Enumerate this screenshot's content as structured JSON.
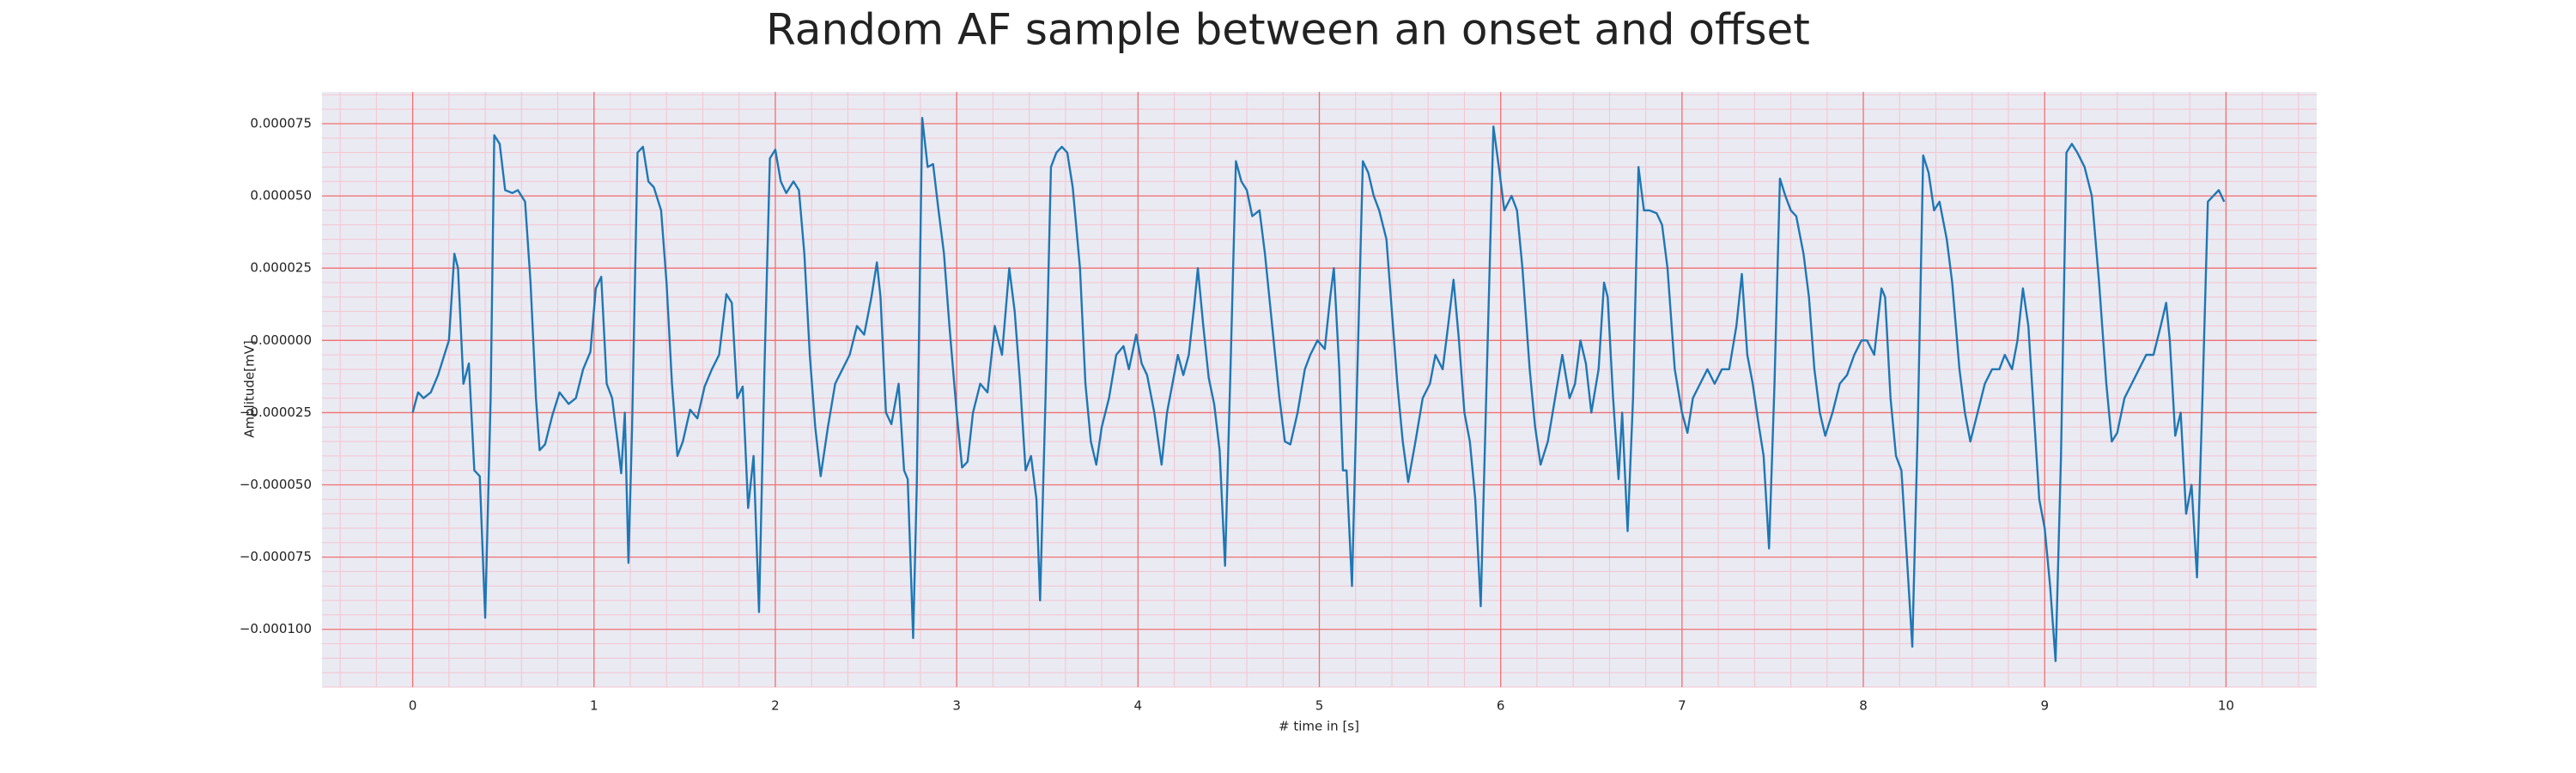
{
  "chart_data": {
    "type": "line",
    "title": "Random AF sample between an onset and offset",
    "xlabel": "# time in [s]",
    "ylabel": "Amplitude[mV]",
    "xlim": [
      -0.5,
      10.5
    ],
    "ylim": [
      -0.00012,
      8.6e-05
    ],
    "xticks": [
      0,
      1,
      2,
      3,
      4,
      5,
      6,
      7,
      8,
      9,
      10
    ],
    "yticks": [
      {
        "value": -0.0001,
        "label": "−0.000100"
      },
      {
        "value": -7.5e-05,
        "label": "−0.000075"
      },
      {
        "value": -5e-05,
        "label": "−0.000050"
      },
      {
        "value": -2.5e-05,
        "label": "−0.000025"
      },
      {
        "value": 0,
        "label": "0.000000"
      },
      {
        "value": 2.5e-05,
        "label": "0.000025"
      },
      {
        "value": 5e-05,
        "label": "0.000050"
      },
      {
        "value": 7.5e-05,
        "label": "0.000075"
      }
    ],
    "grid": true,
    "grid_color": "#f07070",
    "minor_grid": true,
    "minor_divisions": 5,
    "minor_grid_color": "#f4c4d0",
    "background": "#eaeaf2",
    "x": [
      0.0,
      0.03,
      0.06,
      0.1,
      0.14,
      0.18,
      0.2,
      0.23,
      0.25,
      0.28,
      0.31,
      0.34,
      0.37,
      0.4,
      0.43,
      0.45,
      0.48,
      0.51,
      0.55,
      0.58,
      0.62,
      0.65,
      0.68,
      0.7,
      0.73,
      0.77,
      0.81,
      0.86,
      0.9,
      0.94,
      0.98,
      1.01,
      1.04,
      1.07,
      1.1,
      1.13,
      1.15,
      1.17,
      1.19,
      1.21,
      1.24,
      1.27,
      1.3,
      1.33,
      1.37,
      1.4,
      1.43,
      1.46,
      1.49,
      1.53,
      1.57,
      1.61,
      1.65,
      1.69,
      1.73,
      1.76,
      1.79,
      1.82,
      1.85,
      1.88,
      1.91,
      1.94,
      1.97,
      2.0,
      2.03,
      2.06,
      2.1,
      2.13,
      2.16,
      2.19,
      2.22,
      2.25,
      2.29,
      2.33,
      2.37,
      2.41,
      2.45,
      2.49,
      2.53,
      2.56,
      2.58,
      2.61,
      2.64,
      2.68,
      2.71,
      2.73,
      2.76,
      2.78,
      2.81,
      2.84,
      2.87,
      2.9,
      2.93,
      2.96,
      3.0,
      3.03,
      3.06,
      3.09,
      3.13,
      3.17,
      3.21,
      3.25,
      3.29,
      3.32,
      3.35,
      3.38,
      3.41,
      3.44,
      3.46,
      3.49,
      3.52,
      3.55,
      3.58,
      3.61,
      3.64,
      3.68,
      3.71,
      3.74,
      3.77,
      3.8,
      3.84,
      3.88,
      3.92,
      3.95,
      3.99,
      4.02,
      4.05,
      4.09,
      4.13,
      4.16,
      4.19,
      4.22,
      4.25,
      4.28,
      4.31,
      4.33,
      4.36,
      4.39,
      4.42,
      4.45,
      4.48,
      4.51,
      4.54,
      4.57,
      4.6,
      4.63,
      4.67,
      4.7,
      4.74,
      4.78,
      4.81,
      4.84,
      4.88,
      4.92,
      4.95,
      4.99,
      5.03,
      5.06,
      5.08,
      5.11,
      5.13,
      5.15,
      5.18,
      5.21,
      5.24,
      5.27,
      5.3,
      5.33,
      5.37,
      5.4,
      5.43,
      5.46,
      5.49,
      5.53,
      5.57,
      5.61,
      5.64,
      5.68,
      5.71,
      5.74,
      5.77,
      5.8,
      5.83,
      5.86,
      5.89,
      5.92,
      5.96,
      5.99,
      6.02,
      6.06,
      6.09,
      6.12,
      6.16,
      6.19,
      6.22,
      6.26,
      6.3,
      6.34,
      6.38,
      6.41,
      6.44,
      6.47,
      6.5,
      6.54,
      6.57,
      6.59,
      6.62,
      6.65,
      6.67,
      6.7,
      6.73,
      6.76,
      6.79,
      6.82,
      6.86,
      6.89,
      6.92,
      6.96,
      7.0,
      7.03,
      7.06,
      7.1,
      7.14,
      7.18,
      7.22,
      7.26,
      7.3,
      7.33,
      7.36,
      7.39,
      7.42,
      7.45,
      7.48,
      7.51,
      7.54,
      7.57,
      7.6,
      7.63,
      7.67,
      7.7,
      7.73,
      7.76,
      7.79,
      7.83,
      7.87,
      7.91,
      7.95,
      7.99,
      8.02,
      8.06,
      8.1,
      8.12,
      8.15,
      8.18,
      8.21,
      8.24,
      8.27,
      8.3,
      8.33,
      8.36,
      8.39,
      8.42,
      8.46,
      8.49,
      8.53,
      8.56,
      8.59,
      8.63,
      8.67,
      8.71,
      8.75,
      8.78,
      8.82,
      8.85,
      8.88,
      8.91,
      8.94,
      8.97,
      9.0,
      9.03,
      9.06,
      9.09,
      9.12,
      9.15,
      9.18,
      9.22,
      9.26,
      9.3,
      9.34,
      9.37,
      9.4,
      9.44,
      9.48,
      9.52,
      9.56,
      9.6,
      9.64,
      9.67,
      9.69,
      9.72,
      9.75,
      9.78,
      9.81,
      9.84,
      9.87,
      9.9,
      9.93,
      9.96,
      9.99
    ],
    "series": [
      {
        "color": "#1f77b4",
        "values": [
          -2.5e-05,
          -1.8e-05,
          -2e-05,
          -1.8e-05,
          -1.2e-05,
          -4e-06,
          0.0,
          3e-05,
          2.5e-05,
          -1.5e-05,
          -8e-06,
          -4.5e-05,
          -4.7e-05,
          -9.6e-05,
          -2e-05,
          7.1e-05,
          6.8e-05,
          5.2e-05,
          5.1e-05,
          5.2e-05,
          4.8e-05,
          2e-05,
          -2e-05,
          -3.8e-05,
          -3.6e-05,
          -2.6e-05,
          -1.8e-05,
          -2.2e-05,
          -2e-05,
          -1e-05,
          -4e-06,
          1.8e-05,
          2.2e-05,
          -1.5e-05,
          -2e-05,
          -3.5e-05,
          -4.6e-05,
          -2.5e-05,
          -7.7e-05,
          -3e-05,
          6.5e-05,
          6.7e-05,
          5.5e-05,
          5.3e-05,
          4.5e-05,
          2e-05,
          -1.5e-05,
          -4e-05,
          -3.5e-05,
          -2.4e-05,
          -2.7e-05,
          -1.6e-05,
          -1e-05,
          -5e-06,
          1.6e-05,
          1.3e-05,
          -2e-05,
          -1.6e-05,
          -5.8e-05,
          -4e-05,
          -9.4e-05,
          -1e-05,
          6.3e-05,
          6.6e-05,
          5.5e-05,
          5.1e-05,
          5.5e-05,
          5.2e-05,
          3e-05,
          -5e-06,
          -3e-05,
          -4.7e-05,
          -3e-05,
          -1.5e-05,
          -1e-05,
          -5e-06,
          5e-06,
          2e-06,
          1.5e-05,
          2.7e-05,
          1.5e-05,
          -2.5e-05,
          -2.9e-05,
          -1.5e-05,
          -4.5e-05,
          -4.8e-05,
          -0.000103,
          -5e-05,
          7.7e-05,
          6e-05,
          6.1e-05,
          4.5e-05,
          3e-05,
          5e-06,
          -2.5e-05,
          -4.4e-05,
          -4.2e-05,
          -2.5e-05,
          -1.5e-05,
          -1.8e-05,
          5e-06,
          -5e-06,
          2.5e-05,
          1e-05,
          -1.5e-05,
          -4.5e-05,
          -4e-05,
          -5.5e-05,
          -9e-05,
          -2e-05,
          6e-05,
          6.5e-05,
          6.7e-05,
          6.5e-05,
          5.3e-05,
          2.5e-05,
          -1.5e-05,
          -3.5e-05,
          -4.3e-05,
          -3e-05,
          -2e-05,
          -5e-06,
          -2e-06,
          -1e-05,
          2e-06,
          -8e-06,
          -1.2e-05,
          -2.5e-05,
          -4.3e-05,
          -2.5e-05,
          -1.5e-05,
          -5e-06,
          -1.2e-05,
          -5e-06,
          1.2e-05,
          2.5e-05,
          5e-06,
          -1.3e-05,
          -2.2e-05,
          -3.8e-05,
          -7.8e-05,
          -1e-05,
          6.2e-05,
          5.5e-05,
          5.2e-05,
          4.3e-05,
          4.5e-05,
          3e-05,
          5e-06,
          -2e-05,
          -3.5e-05,
          -3.6e-05,
          -2.5e-05,
          -1e-05,
          -5e-06,
          0.0,
          -3e-06,
          1.5e-05,
          2.5e-05,
          -1e-05,
          -4.5e-05,
          -4.5e-05,
          -8.5e-05,
          -1e-05,
          6.2e-05,
          5.8e-05,
          5e-05,
          4.5e-05,
          3.5e-05,
          1e-05,
          -1.5e-05,
          -3.5e-05,
          -4.9e-05,
          -3.5e-05,
          -2e-05,
          -1.5e-05,
          -5e-06,
          -1e-05,
          5e-06,
          2.1e-05,
          0.0,
          -2.5e-05,
          -3.5e-05,
          -5.5e-05,
          -9.2e-05,
          -2e-05,
          7.4e-05,
          6e-05,
          4.5e-05,
          5e-05,
          4.5e-05,
          2.5e-05,
          -1e-05,
          -3e-05,
          -4.3e-05,
          -3.5e-05,
          -2e-05,
          -5e-06,
          -2e-05,
          -1.5e-05,
          0.0,
          -8e-06,
          -2.5e-05,
          -1e-05,
          2e-05,
          1.5e-05,
          -2e-05,
          -4.8e-05,
          -2.5e-05,
          -6.6e-05,
          -2e-05,
          6e-05,
          4.5e-05,
          4.5e-05,
          4.4e-05,
          4e-05,
          2.5e-05,
          -1e-05,
          -2.5e-05,
          -3.2e-05,
          -2e-05,
          -1.5e-05,
          -1e-05,
          -1.5e-05,
          -1e-05,
          -1e-05,
          5e-06,
          2.3e-05,
          -5e-06,
          -1.5e-05,
          -2.8e-05,
          -4e-05,
          -7.2e-05,
          -1.5e-05,
          5.6e-05,
          5e-05,
          4.5e-05,
          4.3e-05,
          3e-05,
          1.5e-05,
          -1e-05,
          -2.5e-05,
          -3.3e-05,
          -2.5e-05,
          -1.5e-05,
          -1.2e-05,
          -5e-06,
          0.0,
          0.0,
          -5e-06,
          1.8e-05,
          1.5e-05,
          -2e-05,
          -4e-05,
          -4.5e-05,
          -7.5e-05,
          -0.000106,
          -3e-05,
          6.4e-05,
          5.8e-05,
          4.5e-05,
          4.8e-05,
          3.5e-05,
          2e-05,
          -1e-05,
          -2.5e-05,
          -3.5e-05,
          -2.5e-05,
          -1.5e-05,
          -1e-05,
          -1e-05,
          -5e-06,
          -1e-05,
          0.0,
          1.8e-05,
          5e-06,
          -2.5e-05,
          -5.5e-05,
          -6.5e-05,
          -8.5e-05,
          -0.000111,
          -4e-05,
          6.5e-05,
          6.8e-05,
          6.5e-05,
          6e-05,
          5e-05,
          2e-05,
          -1.5e-05,
          -3.5e-05,
          -3.2e-05,
          -2e-05,
          -1.5e-05,
          -1e-05,
          -5e-06,
          -5e-06,
          5e-06,
          1.3e-05,
          0.0,
          -3.3e-05,
          -2.5e-05,
          -6e-05,
          -5e-05,
          -8.2e-05,
          -2e-05,
          4.8e-05,
          5e-05,
          5.2e-05,
          4.8e-05
        ]
      }
    ]
  }
}
